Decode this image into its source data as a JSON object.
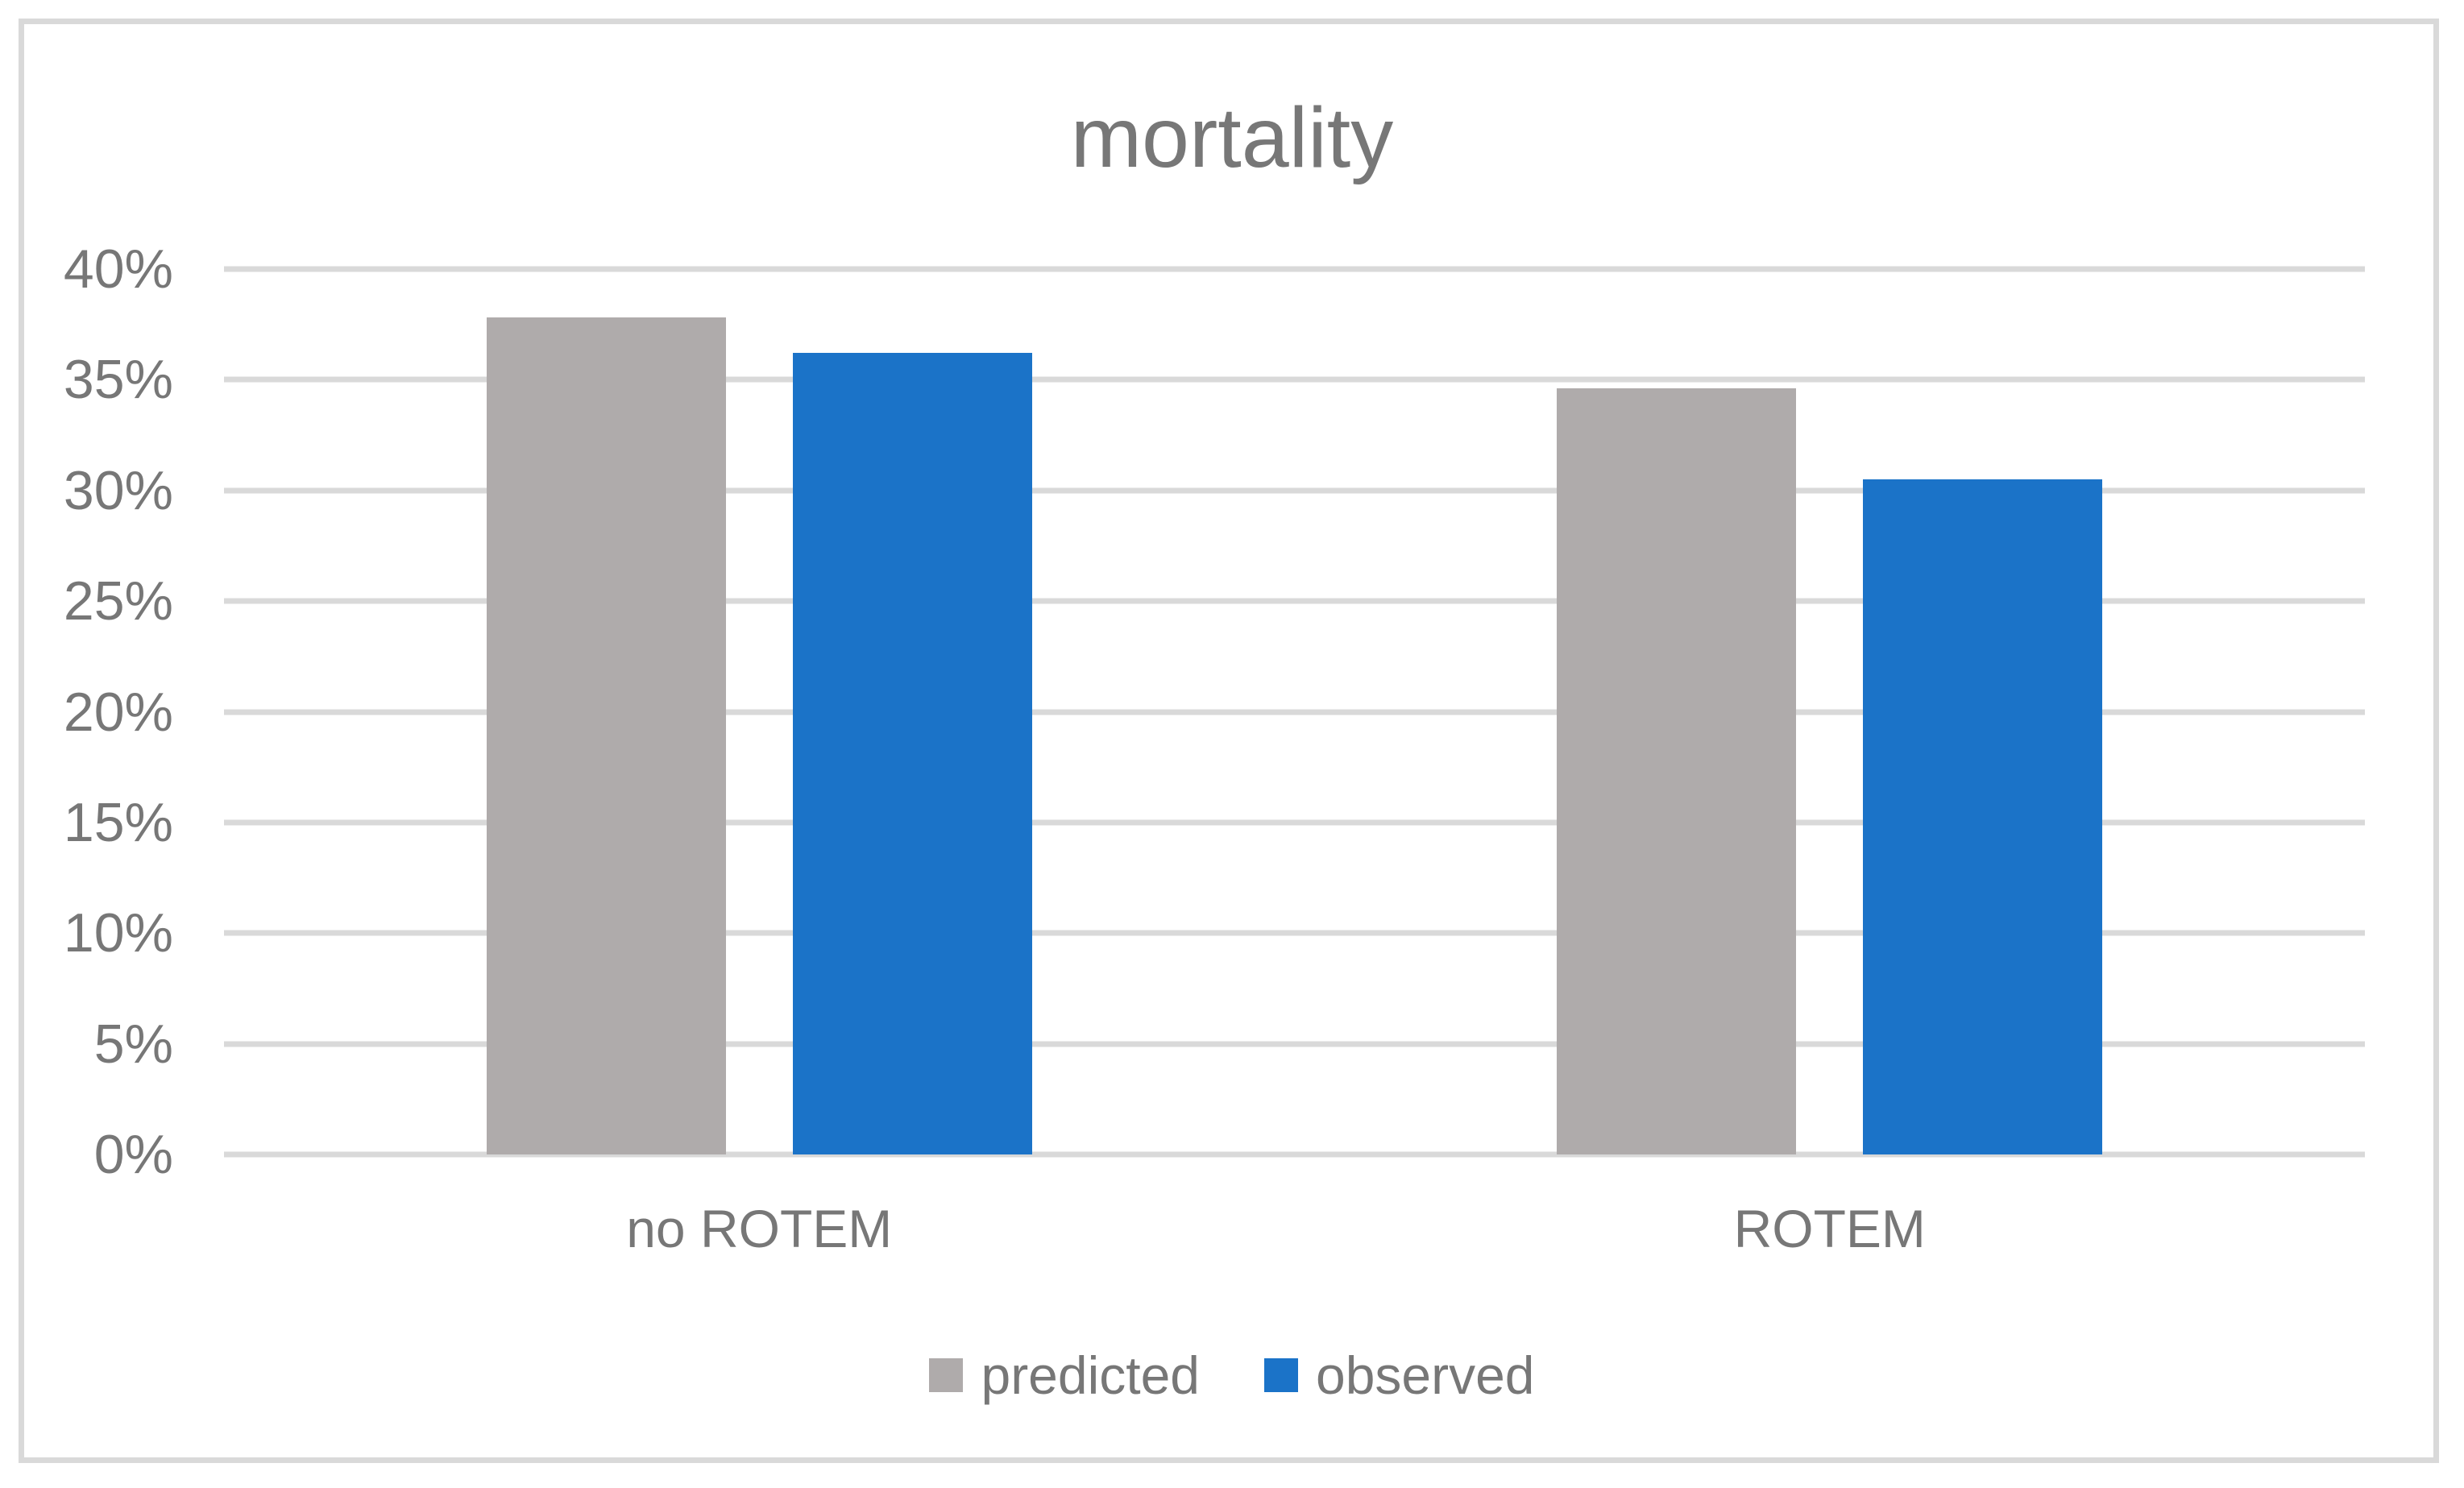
{
  "window": {
    "background_color": "#FFFFFF",
    "border_color": "#D9D9D9"
  },
  "chart_data": {
    "type": "bar",
    "title": "mortality",
    "categories": [
      "no ROTEM",
      "ROTEM"
    ],
    "series": [
      {
        "name": "predicted",
        "color": "#AFABAB",
        "values": [
          37.8,
          34.6
        ]
      },
      {
        "name": "observed",
        "color": "#1B73C8",
        "values": [
          36.2,
          30.5
        ]
      }
    ],
    "value_unit": "%",
    "ylim": [
      0,
      40
    ],
    "ytick_step": 5,
    "ytick_labels": [
      "0%",
      "5%",
      "10%",
      "15%",
      "20%",
      "25%",
      "30%",
      "35%",
      "40%"
    ],
    "xlabel": "",
    "ylabel": "",
    "grid": true,
    "gridline_color": "#D9D9D9",
    "text_color": "#777777",
    "legend_position": "bottom",
    "legend": [
      "predicted",
      "observed"
    ]
  }
}
